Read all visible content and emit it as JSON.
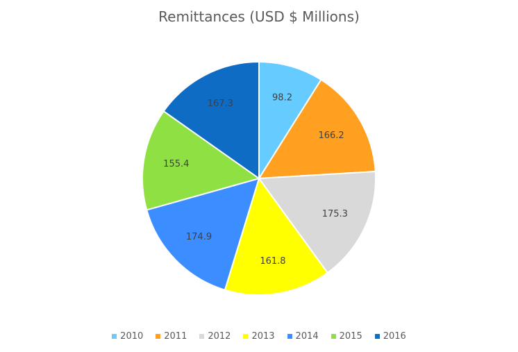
{
  "chart_data": {
    "type": "pie",
    "title": "Remittances (USD $ Millions)",
    "categories": [
      "2010",
      "2011",
      "2012",
      "2013",
      "2014",
      "2015",
      "2016"
    ],
    "values": [
      98.2,
      166.2,
      175.3,
      161.8,
      174.9,
      155.4,
      167.3
    ],
    "labels": [
      "98.2",
      "166.2",
      "175.3",
      "161.8",
      "174.9",
      "155.4",
      "167.3"
    ],
    "colors": [
      "#66CCFF",
      "#FFA020",
      "#D9D9D9",
      "#FFFF00",
      "#3C8DFF",
      "#8EE043",
      "#0E6CC4"
    ],
    "start_angle_deg": 0,
    "direction": "clockwise",
    "legend_position": "bottom",
    "label_color": "#404040"
  }
}
